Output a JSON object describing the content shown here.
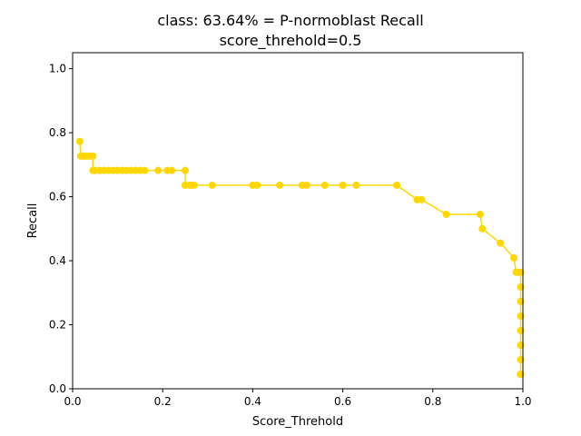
{
  "chart_data": {
    "type": "line",
    "title": "class: 63.64% = P-normoblast Recall",
    "subtitle": "score_threhold=0.5",
    "xlabel": "Score_Threhold",
    "ylabel": "Recall",
    "xlim": [
      0.0,
      1.0
    ],
    "ylim": [
      0.0,
      1.05
    ],
    "xticks": [
      "0.0",
      "0.2",
      "0.4",
      "0.6",
      "0.8",
      "1.0"
    ],
    "yticks": [
      "0.0",
      "0.2",
      "0.4",
      "0.6",
      "0.8",
      "1.0"
    ],
    "grid": false,
    "marker": "circle",
    "color": "#FFD700",
    "series": [
      {
        "x": [
          0.016,
          0.018,
          0.02,
          0.025,
          0.03,
          0.035,
          0.04,
          0.045,
          0.045,
          0.05,
          0.06,
          0.07,
          0.08,
          0.09,
          0.1,
          0.11,
          0.12,
          0.13,
          0.14,
          0.15,
          0.16,
          0.19,
          0.21,
          0.22,
          0.25,
          0.25,
          0.26,
          0.265,
          0.27,
          0.31,
          0.4,
          0.41,
          0.46,
          0.51,
          0.52,
          0.56,
          0.6,
          0.63,
          0.72,
          0.765,
          0.775,
          0.83,
          0.905,
          0.91,
          0.95,
          0.98,
          0.985,
          0.99,
          0.995,
          0.995,
          0.995,
          0.995,
          0.995,
          0.995,
          0.995,
          0.995,
          0.995,
          0.995
        ],
        "y": [
          0.773,
          0.727,
          0.727,
          0.727,
          0.727,
          0.727,
          0.727,
          0.727,
          0.682,
          0.682,
          0.682,
          0.682,
          0.682,
          0.682,
          0.682,
          0.682,
          0.682,
          0.682,
          0.682,
          0.682,
          0.682,
          0.682,
          0.682,
          0.682,
          0.682,
          0.636,
          0.636,
          0.636,
          0.636,
          0.636,
          0.636,
          0.636,
          0.636,
          0.636,
          0.636,
          0.636,
          0.636,
          0.636,
          0.636,
          0.591,
          0.591,
          0.545,
          0.545,
          0.5,
          0.455,
          0.409,
          0.364,
          0.364,
          0.364,
          0.318,
          0.273,
          0.227,
          0.182,
          0.136,
          0.091,
          0.045,
          0.045,
          0.045
        ]
      }
    ]
  }
}
